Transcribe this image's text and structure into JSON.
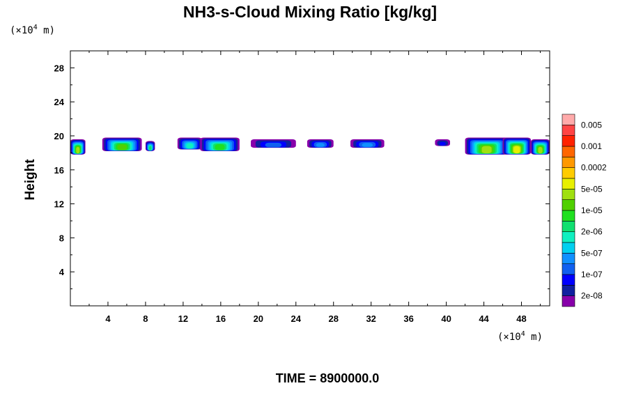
{
  "chart_data": {
    "type": "contour",
    "title": "NH3-s-Cloud Mixing Ratio [kg/kg]",
    "xlabel": "",
    "ylabel": "Height",
    "x_unit": {
      "prefix": "(×10",
      "exp": "4",
      "suffix": " m)"
    },
    "y_unit": {
      "prefix": "(×10",
      "exp": "4",
      "suffix": " m)"
    },
    "xlim": [
      0,
      51
    ],
    "ylim": [
      0,
      30
    ],
    "xticks": [
      4,
      8,
      12,
      16,
      20,
      24,
      28,
      32,
      36,
      40,
      44,
      48
    ],
    "yticks": [
      4,
      8,
      12,
      16,
      20,
      24,
      28
    ],
    "footer": "TIME = 8900000.0",
    "colorbar": {
      "colors": [
        "#8800aa",
        "#1020a0",
        "#0000ff",
        "#1060f0",
        "#1090ff",
        "#00d0f0",
        "#10f0c0",
        "#10e070",
        "#20e020",
        "#50d000",
        "#a0e010",
        "#e8f000",
        "#ffcc00",
        "#ff9900",
        "#ff6600",
        "#ff2200",
        "#ff4444",
        "#ffaaaa"
      ],
      "labels": [
        "2e-08",
        "1e-07",
        "5e-07",
        "2e-06",
        "1e-05",
        "5e-05",
        "0.0002",
        "0.001",
        "0.005"
      ]
    },
    "cloud_regions": [
      {
        "x_start": 0.0,
        "x_end": 1.6,
        "y_bottom": 17.8,
        "y_top": 19.6,
        "max_level": 10
      },
      {
        "x_start": 3.4,
        "x_end": 7.6,
        "y_bottom": 18.2,
        "y_top": 19.8,
        "max_level": 9
      },
      {
        "x_start": 8.0,
        "x_end": 9.0,
        "y_bottom": 18.2,
        "y_top": 19.4,
        "max_level": 7
      },
      {
        "x_start": 11.4,
        "x_end": 14.0,
        "y_bottom": 18.4,
        "y_top": 19.8,
        "max_level": 6
      },
      {
        "x_start": 13.8,
        "x_end": 18.0,
        "y_bottom": 18.2,
        "y_top": 19.8,
        "max_level": 8
      },
      {
        "x_start": 19.2,
        "x_end": 24.0,
        "y_bottom": 18.6,
        "y_top": 19.6,
        "max_level": 3
      },
      {
        "x_start": 25.2,
        "x_end": 28.0,
        "y_bottom": 18.6,
        "y_top": 19.6,
        "max_level": 4
      },
      {
        "x_start": 29.8,
        "x_end": 33.4,
        "y_bottom": 18.6,
        "y_top": 19.6,
        "max_level": 4
      },
      {
        "x_start": 38.8,
        "x_end": 40.4,
        "y_bottom": 18.8,
        "y_top": 19.6,
        "max_level": 2
      },
      {
        "x_start": 42.0,
        "x_end": 46.6,
        "y_bottom": 17.8,
        "y_top": 19.8,
        "max_level": 10
      },
      {
        "x_start": 46.0,
        "x_end": 49.0,
        "y_bottom": 17.8,
        "y_top": 19.8,
        "max_level": 11
      },
      {
        "x_start": 49.0,
        "x_end": 51.0,
        "y_bottom": 17.8,
        "y_top": 19.6,
        "max_level": 10
      }
    ]
  }
}
